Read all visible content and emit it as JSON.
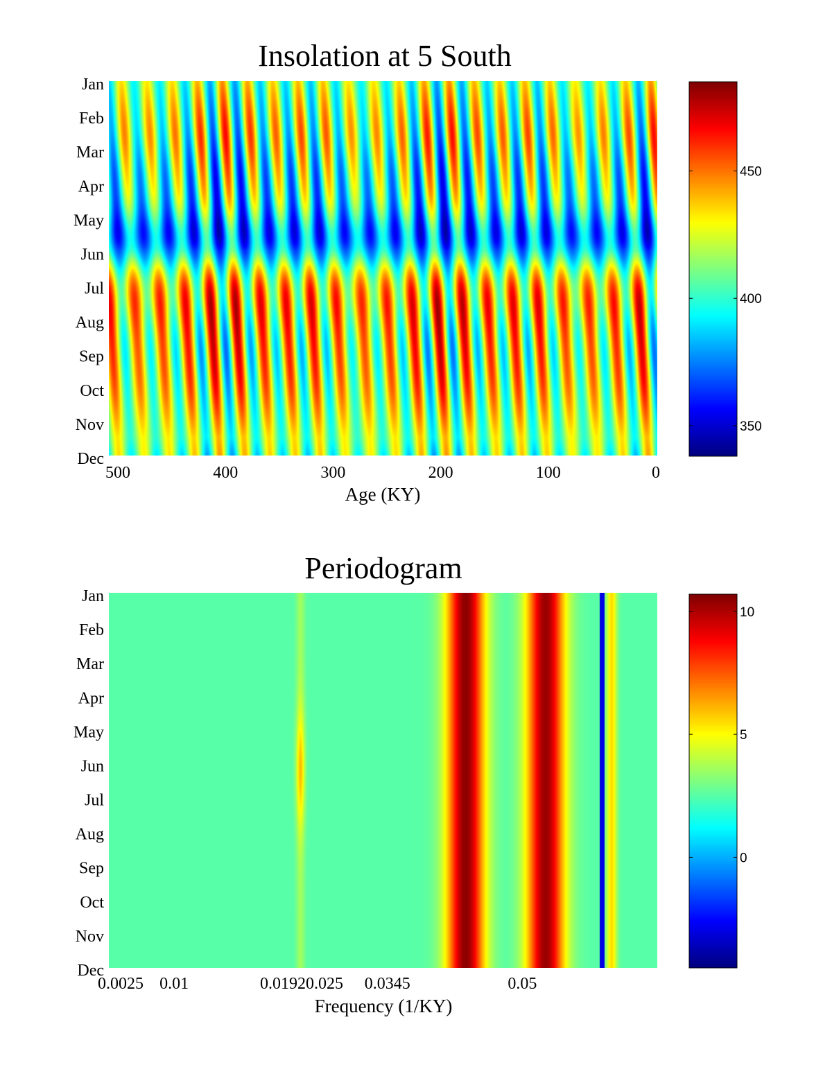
{
  "chart_data": [
    {
      "type": "heatmap",
      "title": "Insolation at 5 South",
      "xlabel": "Age (KY)",
      "ylabel": "",
      "xlim": [
        500,
        0
      ],
      "x_reversed": true,
      "x_ticks": [
        500,
        400,
        300,
        200,
        100,
        0
      ],
      "y_categories": [
        "Jan",
        "Feb",
        "Mar",
        "Apr",
        "May",
        "Jun",
        "Jul",
        "Aug",
        "Sep",
        "Oct",
        "Nov",
        "Dec"
      ],
      "colormap": "jet",
      "color_limits": [
        338,
        485
      ],
      "colorbar_ticks": [
        350,
        400,
        450
      ],
      "pattern": {
        "description_value_range": [
          338,
          485
        ],
        "seasonal_min_month": "Jun",
        "seasonal_max_months": [
          "Mar",
          "Oct"
        ],
        "precession_period_ky": 23,
        "strong_bands_age_ky": [
          495,
          475,
          335,
          318,
          290,
          245,
          220,
          198,
          175,
          150,
          128,
          105,
          82,
          58,
          35,
          12
        ]
      }
    },
    {
      "type": "heatmap",
      "title": "Periodogram",
      "xlabel": "Frequency (1/KY)",
      "ylabel": "",
      "xlim": [
        0.0025,
        0.0655
      ],
      "x_ticks": [
        0.0025,
        0.01,
        0.0192,
        0.025,
        0.0345,
        0.05
      ],
      "x_tick_labels": [
        "0.0025",
        "0.01",
        "0.0192",
        "0.025",
        "0.0345",
        "0.05"
      ],
      "y_categories": [
        "Jan",
        "Feb",
        "Mar",
        "Apr",
        "May",
        "Jun",
        "Jul",
        "Aug",
        "Sep",
        "Oct",
        "Nov",
        "Dec"
      ],
      "colormap": "jet",
      "color_limits": [
        -4.5,
        10.7
      ],
      "colorbar_ticks": [
        0,
        5,
        10
      ],
      "peaks": [
        {
          "frequency": 0.0435,
          "value": 10.5
        },
        {
          "frequency": 0.0527,
          "value": 10.3
        },
        {
          "frequency": 0.0603,
          "value": 5.5
        },
        {
          "frequency": 0.0245,
          "value": 6.0
        }
      ],
      "background_level": 2.5
    }
  ]
}
